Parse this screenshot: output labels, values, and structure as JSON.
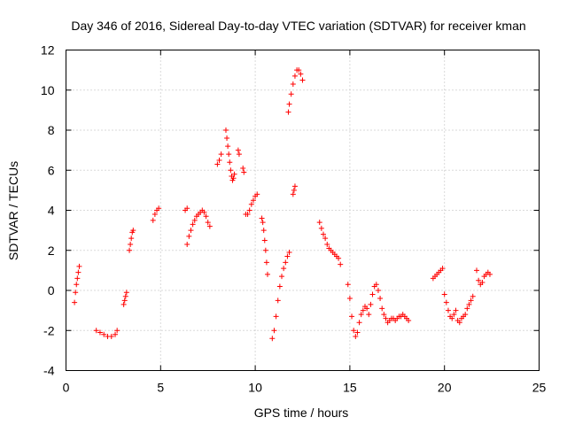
{
  "chart_data": {
    "type": "scatter",
    "title": "Day 346 of 2016, Sidereal Day-to-day VTEC variation (SDTVAR) for receiver kman",
    "xlabel": "GPS time / hours",
    "ylabel": "SDTVAR / TECUs",
    "xlim": [
      0,
      25
    ],
    "ylim": [
      -4,
      12
    ],
    "xticks": [
      "0",
      "5",
      "10",
      "15",
      "20",
      "25"
    ],
    "yticks": [
      "-4",
      "-2",
      "0",
      "2",
      "4",
      "6",
      "8",
      "10",
      "12"
    ],
    "grid": true,
    "marker": "plus",
    "color": "#ff0000",
    "segments": [
      {
        "x": [
          0.45,
          0.5,
          0.55,
          0.6,
          0.65,
          0.7
        ],
        "y": [
          -0.6,
          -0.1,
          0.3,
          0.6,
          0.9,
          1.2
        ]
      },
      {
        "x": [
          1.6,
          1.8,
          2.0,
          2.2,
          2.4,
          2.6,
          2.7
        ],
        "y": [
          -2.0,
          -2.1,
          -2.2,
          -2.3,
          -2.3,
          -2.2,
          -2.0
        ]
      },
      {
        "x": [
          3.05,
          3.1,
          3.15,
          3.2
        ],
        "y": [
          -0.7,
          -0.5,
          -0.3,
          -0.1
        ]
      },
      {
        "x": [
          3.35,
          3.4,
          3.45,
          3.5,
          3.55
        ],
        "y": [
          2.0,
          2.3,
          2.6,
          2.9,
          3.0
        ]
      },
      {
        "x": [
          4.6,
          4.7,
          4.8,
          4.9
        ],
        "y": [
          3.5,
          3.8,
          4.0,
          4.1
        ]
      },
      {
        "x": [
          6.3,
          6.4
        ],
        "y": [
          4.0,
          4.1
        ]
      },
      {
        "x": [
          6.4,
          6.5,
          6.6,
          6.7,
          6.8,
          6.9,
          7.0,
          7.1,
          7.2,
          7.3,
          7.4,
          7.5,
          7.6
        ],
        "y": [
          2.3,
          2.7,
          3.0,
          3.3,
          3.5,
          3.7,
          3.8,
          3.9,
          4.0,
          3.9,
          3.7,
          3.4,
          3.2
        ]
      },
      {
        "x": [
          8.0,
          8.1,
          8.2
        ],
        "y": [
          6.3,
          6.5,
          6.8
        ]
      },
      {
        "x": [
          8.45,
          8.5,
          8.55,
          8.6,
          8.65,
          8.7,
          8.75,
          8.8,
          8.85,
          8.9
        ],
        "y": [
          8.0,
          7.6,
          7.2,
          6.8,
          6.4,
          6.0,
          5.7,
          5.5,
          5.6,
          5.8
        ]
      },
      {
        "x": [
          9.1,
          9.15
        ],
        "y": [
          7.0,
          6.8
        ]
      },
      {
        "x": [
          9.35,
          9.4
        ],
        "y": [
          6.1,
          5.9
        ]
      },
      {
        "x": [
          9.5,
          9.6,
          9.7,
          9.8,
          9.9,
          10.0,
          10.1
        ],
        "y": [
          3.8,
          3.8,
          4.0,
          4.3,
          4.5,
          4.7,
          4.8
        ]
      },
      {
        "x": [
          10.35,
          10.4,
          10.45,
          10.5,
          10.55,
          10.6,
          10.65
        ],
        "y": [
          3.6,
          3.4,
          3.0,
          2.5,
          2.0,
          1.4,
          0.8
        ]
      },
      {
        "x": [
          10.9,
          11.0,
          11.1,
          11.2,
          11.3,
          11.4,
          11.5,
          11.6,
          11.7,
          11.8
        ],
        "y": [
          -2.4,
          -2.0,
          -1.3,
          -0.5,
          0.2,
          0.7,
          1.1,
          1.4,
          1.7,
          1.9
        ]
      },
      {
        "x": [
          11.75,
          11.8,
          11.9,
          12.0,
          12.1,
          12.2,
          12.3,
          12.4,
          12.5
        ],
        "y": [
          8.9,
          9.3,
          9.8,
          10.3,
          10.7,
          11.0,
          11.0,
          10.8,
          10.5
        ]
      },
      {
        "x": [
          12.0,
          12.05,
          12.1
        ],
        "y": [
          4.8,
          5.0,
          5.2
        ]
      },
      {
        "x": [
          13.4,
          13.5,
          13.6,
          13.7,
          13.8,
          13.9,
          14.0,
          14.1,
          14.2,
          14.3,
          14.4,
          14.5
        ],
        "y": [
          3.4,
          3.1,
          2.8,
          2.6,
          2.3,
          2.1,
          2.0,
          1.9,
          1.8,
          1.7,
          1.6,
          1.3
        ]
      },
      {
        "x": [
          14.9,
          15.0,
          15.1,
          15.2,
          15.3,
          15.4,
          15.5,
          15.6,
          15.7,
          15.8,
          15.9,
          16.0,
          16.1,
          16.2,
          16.3,
          16.4,
          16.5,
          16.6,
          16.7,
          16.8,
          16.9,
          17.0,
          17.1,
          17.2
        ],
        "y": [
          0.3,
          -0.4,
          -1.3,
          -2.0,
          -2.3,
          -2.1,
          -1.6,
          -1.2,
          -1.0,
          -0.8,
          -0.9,
          -1.2,
          -0.7,
          -0.2,
          0.2,
          0.3,
          0.0,
          -0.4,
          -0.9,
          -1.2,
          -1.4,
          -1.6,
          -1.5,
          -1.4
        ]
      },
      {
        "x": [
          17.3,
          17.4,
          17.5,
          17.6,
          17.7,
          17.8,
          17.9,
          18.0,
          18.1
        ],
        "y": [
          -1.4,
          -1.5,
          -1.4,
          -1.3,
          -1.3,
          -1.2,
          -1.3,
          -1.4,
          -1.5
        ]
      },
      {
        "x": [
          19.4,
          19.5,
          19.6,
          19.7,
          19.8,
          19.9
        ],
        "y": [
          0.6,
          0.7,
          0.8,
          0.9,
          1.0,
          1.1
        ]
      },
      {
        "x": [
          20.0,
          20.1,
          20.2,
          20.3,
          20.4,
          20.5,
          20.6,
          20.7,
          20.8,
          20.9,
          21.0,
          21.1,
          21.2,
          21.3,
          21.4,
          21.5
        ],
        "y": [
          -0.2,
          -0.6,
          -1.0,
          -1.3,
          -1.4,
          -1.2,
          -1.0,
          -1.5,
          -1.6,
          -1.4,
          -1.3,
          -1.2,
          -0.9,
          -0.7,
          -0.5,
          -0.3
        ]
      },
      {
        "x": [
          21.7,
          21.8,
          21.9,
          22.0,
          22.1,
          22.2,
          22.3,
          22.4
        ],
        "y": [
          1.0,
          0.5,
          0.3,
          0.4,
          0.7,
          0.8,
          0.9,
          0.8
        ]
      }
    ]
  }
}
